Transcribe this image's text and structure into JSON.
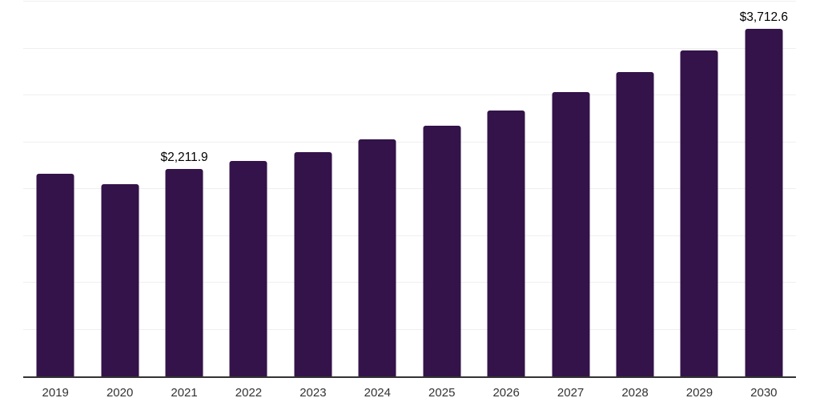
{
  "chart_data": {
    "type": "bar",
    "title": "",
    "xlabel": "",
    "ylabel": "",
    "categories": [
      "2019",
      "2020",
      "2021",
      "2022",
      "2023",
      "2024",
      "2025",
      "2026",
      "2027",
      "2028",
      "2029",
      "2030"
    ],
    "values": [
      2165,
      2054,
      2211.9,
      2299,
      2396,
      2527,
      2673,
      2838,
      3032,
      3248,
      3477,
      3712.6
    ],
    "point_labels": [
      "",
      "",
      "$2,211.9",
      "",
      "",
      "",
      "",
      "",
      "",
      "",
      "",
      "$3,712.6"
    ],
    "ylim": [
      0,
      4000
    ],
    "gridline_step": 500,
    "grid": true,
    "legend_position": "none",
    "colors": {
      "bar": "#331349",
      "gridline": "#efefef",
      "axis": "#333333",
      "value_label": "#000000",
      "tick_label": "#333333"
    }
  }
}
